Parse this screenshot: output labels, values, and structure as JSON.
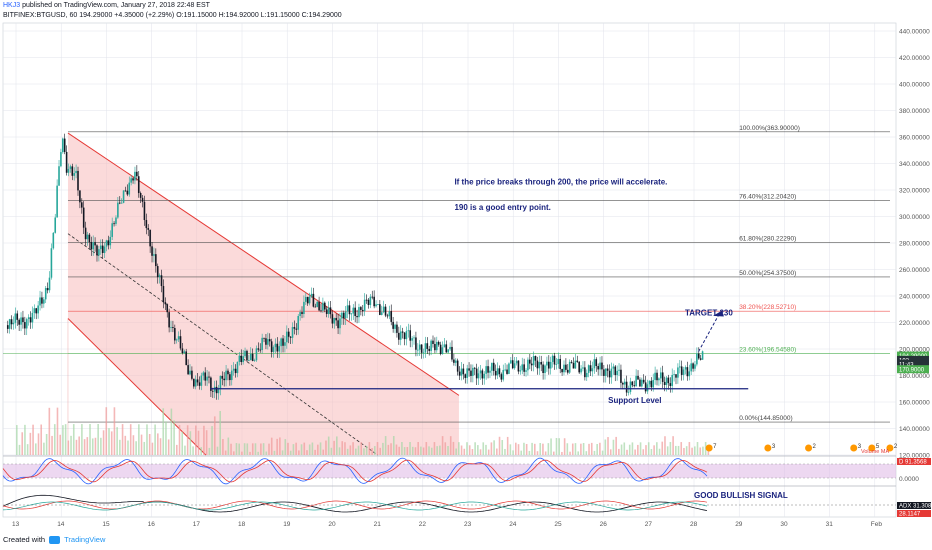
{
  "header": {
    "user": "HKJ3",
    "published": "published on TradingView.com, January 27, 2018 22:48 EST",
    "symbol": "BITFINEX:BTGUSD, 60",
    "last": "194.29000",
    "change": "+4.35000 (+2.29%)",
    "open_label": "O:",
    "open": "191.15000",
    "high_label": "H:",
    "high": "194.92000",
    "low_label": "L:",
    "low": "191.15000",
    "close_label": "C:",
    "close": "194.29000"
  },
  "footer": {
    "created_with": "Created with",
    "brand": "TradingView"
  },
  "chart_data": {
    "type": "candlestick",
    "y_axis": {
      "min": 120,
      "max": 440,
      "step": 20,
      "format": "fixed5"
    },
    "x_ticks": [
      "13",
      "14",
      "15",
      "16",
      "17",
      "18",
      "19",
      "20",
      "21",
      "22",
      "23",
      "24",
      "25",
      "26",
      "27",
      "28",
      "29",
      "30",
      "31",
      "Feb"
    ],
    "price_path": [
      [
        12.8,
        218
      ],
      [
        13.4,
        225
      ],
      [
        13.7,
        250
      ],
      [
        13.85,
        300
      ],
      [
        14.0,
        362
      ],
      [
        14.1,
        340
      ],
      [
        14.3,
        330
      ],
      [
        14.5,
        290
      ],
      [
        14.8,
        270
      ],
      [
        15.0,
        282
      ],
      [
        15.2,
        300
      ],
      [
        15.4,
        320
      ],
      [
        15.6,
        334
      ],
      [
        15.75,
        310
      ],
      [
        15.9,
        290
      ],
      [
        16.1,
        258
      ],
      [
        16.3,
        230
      ],
      [
        16.5,
        210
      ],
      [
        16.8,
        185
      ],
      [
        17.0,
        172
      ],
      [
        17.2,
        180
      ],
      [
        17.4,
        168
      ],
      [
        17.6,
        178
      ],
      [
        17.9,
        190
      ],
      [
        18.2,
        195
      ],
      [
        18.5,
        205
      ],
      [
        18.9,
        202
      ],
      [
        19.2,
        222
      ],
      [
        19.5,
        240
      ],
      [
        19.8,
        228
      ],
      [
        20.1,
        222
      ],
      [
        20.4,
        228
      ],
      [
        20.7,
        232
      ],
      [
        20.9,
        238
      ],
      [
        21.1,
        228
      ],
      [
        21.4,
        215
      ],
      [
        21.8,
        205
      ],
      [
        22.1,
        198
      ],
      [
        22.3,
        205
      ],
      [
        22.5,
        200
      ],
      [
        22.7,
        188
      ],
      [
        23.0,
        180
      ],
      [
        23.3,
        184
      ],
      [
        23.6,
        182
      ],
      [
        23.9,
        186
      ],
      [
        24.3,
        188
      ],
      [
        24.7,
        189
      ],
      [
        25.2,
        187
      ],
      [
        25.6,
        185
      ],
      [
        26.0,
        186
      ],
      [
        26.3,
        180
      ],
      [
        26.5,
        172
      ],
      [
        26.8,
        174
      ],
      [
        27.1,
        176
      ],
      [
        27.5,
        178
      ],
      [
        27.8,
        185
      ],
      [
        28.0,
        189
      ],
      [
        28.2,
        194
      ]
    ],
    "fibonacci": [
      {
        "level": "100.00%",
        "price": 363.9,
        "label": "100.00%(363.90000)",
        "color": "#9e9e9e"
      },
      {
        "level": "76.40%",
        "price": 312.2042,
        "label": "76.40%(312.20420)",
        "color": "#9e9e9e"
      },
      {
        "level": "61.80%",
        "price": 280.2229,
        "label": "61.80%(280.22290)",
        "color": "#9e9e9e"
      },
      {
        "level": "50.00%",
        "price": 254.375,
        "label": "50.00%(254.37500)",
        "color": "#9e9e9e"
      },
      {
        "level": "38.20%",
        "price": 228.5271,
        "label": "38.20%(228.52710)",
        "color": "#ef5350"
      },
      {
        "level": "23.60%",
        "price": 196.5458,
        "label": "23.60%(196.54580)",
        "color": "#4caf50"
      },
      {
        "level": "0.00%",
        "price": 144.85,
        "label": "0.00%(144.85000)",
        "color": "#9e9e9e"
      }
    ],
    "channel": {
      "upper_start": [
        14.15,
        363
      ],
      "upper_end": [
        22.8,
        165
      ],
      "lower_start": [
        14.15,
        223
      ],
      "lower_end": [
        17.2,
        120
      ]
    },
    "support_level": {
      "price": 170,
      "from": 17.3,
      "to": 29.2,
      "label": "Support Level"
    },
    "target": {
      "label": "TARGET 230",
      "price": 230
    },
    "annotations": [
      "If the price breaks through 200, the price will accelerate.",
      "190 is a good entry point."
    ],
    "price_labels": [
      {
        "text": "194.29000",
        "color": "#4caf50"
      },
      {
        "text": "192",
        "color": "#263238"
      },
      {
        "text": "11:43",
        "color": "#263238"
      },
      {
        "text": "170.9000",
        "color": "#4caf50"
      }
    ],
    "stoch": {
      "label": "D",
      "value": "91.3568",
      "zero": "0.0000"
    },
    "adx": {
      "label": "ADX",
      "value": "31.3087",
      "value2": "28.1147",
      "signal": "GOOD BULLISH SIGNAL"
    },
    "volume_label": "Volume MA",
    "earnings_markers": [
      "7",
      "3",
      "2",
      "3",
      "5",
      "2"
    ]
  },
  "colors": {
    "up": "#26a69a",
    "down": "#131722",
    "grid": "#e0e3eb",
    "channel": "#e53935",
    "channel_fill": "#f8bbbb",
    "annotation": "#1a237e"
  }
}
